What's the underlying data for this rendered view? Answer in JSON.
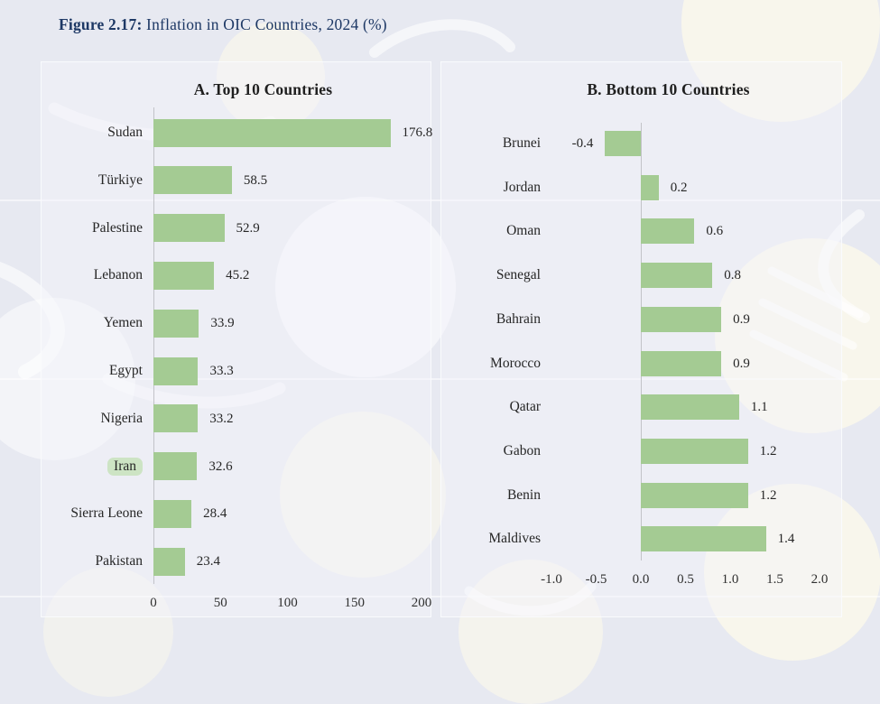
{
  "figure": {
    "label": "Figure 2.17:",
    "title": " Inflation in OIC Countries, 2024 (%)"
  },
  "colors": {
    "bar": "#a4cb93",
    "highlight": "#cde4c4",
    "figure_title": "#1d3865",
    "text": "#262626",
    "axis_line": "#c2c3c8",
    "watermark_cream": "rgba(250,247,235,0.9)",
    "watermark_white": "rgba(255,255,255,0.55)"
  },
  "chart_data": [
    {
      "type": "bar",
      "orientation": "horizontal",
      "title": "A. Top 10 Countries",
      "categories": [
        "Sudan",
        "Türkiye",
        "Palestine",
        "Lebanon",
        "Yemen",
        "Egypt",
        "Nigeria",
        "Iran",
        "Sierra Leone",
        "Pakistan"
      ],
      "values": [
        176.8,
        58.5,
        52.9,
        45.2,
        33.9,
        33.3,
        33.2,
        32.6,
        28.4,
        23.4
      ],
      "value_labels": [
        "176.8",
        "58.5",
        "52.9",
        "45.2",
        "33.9",
        "33.3",
        "33.2",
        "32.6",
        "28.4",
        "23.4"
      ],
      "highlight_category": "Iran",
      "xlim": [
        0,
        200
      ],
      "xtick_values": [
        0,
        50,
        100,
        150,
        200
      ],
      "xtick_labels": [
        "0",
        "50",
        "100",
        "150",
        "200"
      ],
      "grid": false,
      "legend": null
    },
    {
      "type": "bar",
      "orientation": "horizontal",
      "title": "B. Bottom 10 Countries",
      "categories": [
        "Brunei",
        "Jordan",
        "Oman",
        "Senegal",
        "Bahrain",
        "Morocco",
        "Qatar",
        "Gabon",
        "Benin",
        "Maldives"
      ],
      "values": [
        -0.4,
        0.2,
        0.6,
        0.8,
        0.9,
        0.9,
        1.1,
        1.2,
        1.2,
        1.4
      ],
      "value_labels": [
        "-0.4",
        "0.2",
        "0.6",
        "0.8",
        "0.9",
        "0.9",
        "1.1",
        "1.2",
        "1.2",
        "1.4"
      ],
      "highlight_category": null,
      "xlim": [
        -1.0,
        2.0
      ],
      "xtick_values": [
        -1.0,
        -0.5,
        0.0,
        0.5,
        1.0,
        1.5,
        2.0
      ],
      "xtick_labels": [
        "-1.0",
        "-0.5",
        "0.0",
        "0.5",
        "1.0",
        "1.5",
        "2.0"
      ],
      "grid": false,
      "legend": null
    }
  ]
}
